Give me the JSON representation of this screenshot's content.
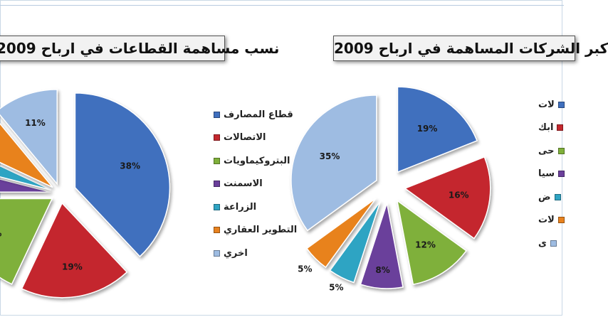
{
  "colors": {
    "blue": "#3f6fbe",
    "red": "#c4282e",
    "green": "#7fb03a",
    "purple": "#6b3f9b",
    "teal": "#2ea4c3",
    "orange": "#e8821e",
    "lightblue": "#9ebce2"
  },
  "chart_data": [
    {
      "type": "pie",
      "title": "نسب مساهمة القطاعات في ارباح 2009",
      "legend_position": "right",
      "slices": [
        {
          "label": "قطاع المصارف",
          "value": 38,
          "data_label": "38%",
          "color": "#3f6fbe"
        },
        {
          "label": "الاتصالات",
          "value": 19,
          "data_label": "19%",
          "color": "#c4282e"
        },
        {
          "label": "البتروكيماويات",
          "value": 18,
          "data_label": "%",
          "color": "#7fb03a"
        },
        {
          "label": "الاسمنت",
          "value": 4,
          "data_label": "",
          "color": "#6b3f9b"
        },
        {
          "label": "الزراعة",
          "value": 3,
          "data_label": "",
          "color": "#2ea4c3"
        },
        {
          "label": "التطوير العقاري",
          "value": 7,
          "data_label": "",
          "color": "#e8821e"
        },
        {
          "label": "اخري",
          "value": 11,
          "data_label": "11%",
          "color": "#9ebce2"
        }
      ]
    },
    {
      "type": "pie",
      "title": "كبر الشركات المساهمة في ارباح 2009",
      "legend_position": "right",
      "slices": [
        {
          "label": "لات",
          "value": 19,
          "data_label": "19%",
          "color": "#3f6fbe"
        },
        {
          "label": "ابك",
          "value": 16,
          "data_label": "16%",
          "color": "#c4282e"
        },
        {
          "label": "حى",
          "value": 12,
          "data_label": "12%",
          "color": "#7fb03a"
        },
        {
          "label": "سيا",
          "value": 8,
          "data_label": "8%",
          "color": "#6b3f9b"
        },
        {
          "label": "ض",
          "value": 5,
          "data_label": "5%",
          "color": "#2ea4c3"
        },
        {
          "label": "لات",
          "value": 5,
          "data_label": "5%",
          "color": "#e8821e"
        },
        {
          "label": "ى",
          "value": 35,
          "data_label": "35%",
          "color": "#9ebce2"
        }
      ]
    }
  ]
}
